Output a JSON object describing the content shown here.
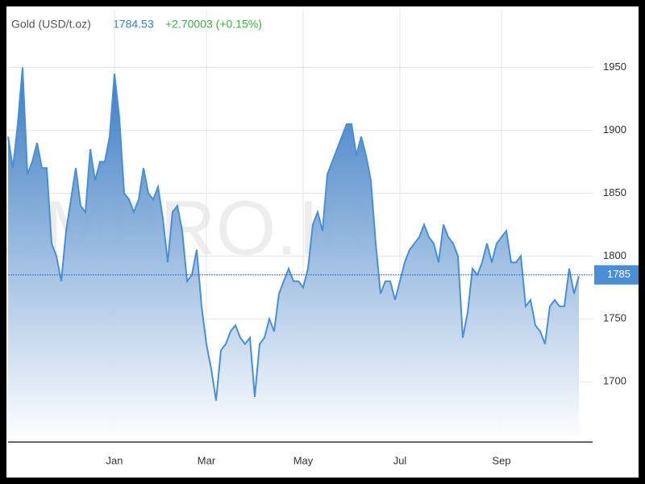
{
  "chart_data": {
    "type": "area",
    "title": "Gold (USD/t.oz)",
    "price": "1784.53",
    "change": "+2.70003 (+0.15%)",
    "watermark": "CMPRO.IR",
    "categories": [
      null,
      null,
      null,
      null,
      null,
      null,
      null,
      null,
      null,
      null,
      null,
      null,
      null,
      null,
      null,
      null,
      null,
      null,
      null,
      null,
      null,
      null,
      "Jan",
      null,
      null,
      null,
      null,
      null,
      null,
      null,
      null,
      null,
      null,
      null,
      null,
      null,
      null,
      null,
      null,
      null,
      null,
      "Mar",
      null,
      null,
      null,
      null,
      null,
      null,
      null,
      null,
      null,
      null,
      null,
      null,
      null,
      null,
      null,
      null,
      null,
      null,
      null,
      "May",
      null,
      null,
      null,
      null,
      null,
      null,
      null,
      null,
      null,
      null,
      null,
      null,
      null,
      null,
      null,
      null,
      null,
      null,
      null,
      "Jul",
      null,
      null,
      null,
      null,
      null,
      null,
      null,
      null,
      null,
      null,
      null,
      null,
      null,
      null,
      null,
      null,
      null,
      null,
      null,
      null,
      "Sep",
      null,
      null,
      null,
      null,
      null,
      null,
      null,
      null,
      null,
      null,
      null,
      null,
      null,
      null,
      null,
      null
    ],
    "series": [
      {
        "name": "Gold",
        "color": "#4a8fd4",
        "values": [
          1895,
          1870,
          1905,
          1950,
          1865,
          1875,
          1890,
          1870,
          1870,
          1810,
          1800,
          1780,
          1820,
          1845,
          1870,
          1840,
          1835,
          1885,
          1860,
          1875,
          1875,
          1895,
          1945,
          1910,
          1850,
          1845,
          1835,
          1845,
          1870,
          1850,
          1845,
          1855,
          1830,
          1795,
          1835,
          1840,
          1820,
          1780,
          1785,
          1805,
          1760,
          1730,
          1710,
          1685,
          1725,
          1730,
          1740,
          1745,
          1735,
          1730,
          1735,
          1688,
          1730,
          1735,
          1750,
          1740,
          1770,
          1780,
          1790,
          1780,
          1780,
          1775,
          1790,
          1825,
          1835,
          1820,
          1865,
          1875,
          1885,
          1895,
          1905,
          1905,
          1880,
          1895,
          1880,
          1860,
          1810,
          1770,
          1780,
          1780,
          1765,
          1780,
          1795,
          1805,
          1810,
          1815,
          1825,
          1815,
          1810,
          1795,
          1825,
          1815,
          1810,
          1800,
          1735,
          1755,
          1790,
          1785,
          1795,
          1810,
          1795,
          1810,
          1815,
          1820,
          1795,
          1795,
          1800,
          1760,
          1765,
          1745,
          1740,
          1730,
          1760,
          1765,
          1760,
          1760,
          1790,
          1770,
          1784
        ]
      }
    ],
    "current_price": 1785,
    "ylim": [
      1652,
      1996
    ],
    "yticks": [
      1700,
      1750,
      1800,
      1850,
      1900,
      1950
    ],
    "grid": true
  }
}
